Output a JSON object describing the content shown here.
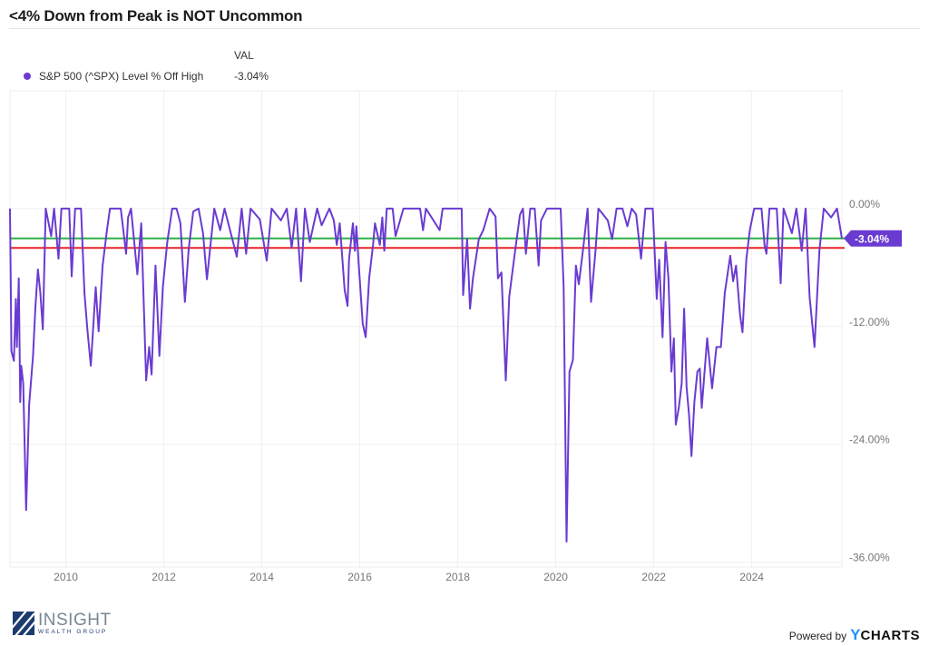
{
  "title": "<4% Down from Peak is NOT Uncommon",
  "legend": {
    "header": "VAL",
    "items": [
      {
        "label": "S&P 500 (^SPX) Level % Off High",
        "value": "-3.04%",
        "color": "#6a3bd1"
      }
    ]
  },
  "footer": {
    "logo_main": "INSIGHT",
    "logo_sub": "WEALTH GROUP",
    "powered_by": "Powered by",
    "brand_y": "Y",
    "brand_rest": "CHARTS"
  },
  "chart_data": {
    "type": "line",
    "title": "<4% Down from Peak is NOT Uncommon",
    "xlabel": "",
    "ylabel": "",
    "xlim": [
      2008.86,
      2025.84
    ],
    "ylim": [
      -36.5,
      12
    ],
    "grid": true,
    "legend_placement": "top-left",
    "x_ticks": [
      2010,
      2012,
      2014,
      2016,
      2018,
      2020,
      2022,
      2024
    ],
    "x_tick_labels": [
      "2010",
      "2012",
      "2014",
      "2016",
      "2018",
      "2020",
      "2022",
      "2024"
    ],
    "y_ticks": [
      0,
      -12,
      -24,
      -36
    ],
    "y_tick_labels": [
      "0.00%",
      "-12.00%",
      "-24.00%",
      "-36.00%"
    ],
    "end_label": "-3.04%",
    "reference_lines": [
      {
        "name": "green-reference",
        "value": -3.04,
        "color": "#2fb045"
      },
      {
        "name": "red-reference",
        "value": -4.0,
        "color": "#ec2227"
      }
    ],
    "series": [
      {
        "name": "S&P 500 (^SPX) Level % Off High",
        "color": "#6a3bd1",
        "points": [
          [
            2008.86,
            0
          ],
          [
            2008.89,
            -14.5
          ],
          [
            2008.94,
            -15.5
          ],
          [
            2008.98,
            -9.2
          ],
          [
            2009.0,
            -14.1
          ],
          [
            2009.04,
            -7.1
          ],
          [
            2009.07,
            -19.7
          ],
          [
            2009.09,
            -16
          ],
          [
            2009.13,
            -17.8
          ],
          [
            2009.19,
            -30.7
          ],
          [
            2009.25,
            -20
          ],
          [
            2009.33,
            -15
          ],
          [
            2009.38,
            -9.9
          ],
          [
            2009.43,
            -6.2
          ],
          [
            2009.48,
            -8.6
          ],
          [
            2009.53,
            -12.3
          ],
          [
            2009.59,
            0
          ],
          [
            2009.7,
            -2.8
          ],
          [
            2009.76,
            0
          ],
          [
            2009.85,
            -5.1
          ],
          [
            2009.91,
            0
          ],
          [
            2010.07,
            0
          ],
          [
            2010.12,
            -6.9
          ],
          [
            2010.19,
            0
          ],
          [
            2010.31,
            0
          ],
          [
            2010.38,
            -8.6
          ],
          [
            2010.44,
            -12.3
          ],
          [
            2010.51,
            -16
          ],
          [
            2010.61,
            -8
          ],
          [
            2010.67,
            -12.5
          ],
          [
            2010.75,
            -5.8
          ],
          [
            2010.84,
            -2.2
          ],
          [
            2010.9,
            0
          ],
          [
            2011.12,
            0
          ],
          [
            2011.23,
            -4.6
          ],
          [
            2011.27,
            -0.9
          ],
          [
            2011.33,
            0
          ],
          [
            2011.46,
            -6.7
          ],
          [
            2011.54,
            -1.5
          ],
          [
            2011.64,
            -17.5
          ],
          [
            2011.7,
            -14.1
          ],
          [
            2011.75,
            -16.9
          ],
          [
            2011.83,
            -5.8
          ],
          [
            2011.91,
            -15
          ],
          [
            2011.98,
            -8
          ],
          [
            2012.07,
            -3.4
          ],
          [
            2012.17,
            0
          ],
          [
            2012.26,
            0
          ],
          [
            2012.34,
            -1.5
          ],
          [
            2012.43,
            -9.5
          ],
          [
            2012.51,
            -4
          ],
          [
            2012.6,
            -0.3
          ],
          [
            2012.71,
            0
          ],
          [
            2012.8,
            -2.5
          ],
          [
            2012.88,
            -7.2
          ],
          [
            2013.03,
            0
          ],
          [
            2013.15,
            -2.2
          ],
          [
            2013.24,
            0
          ],
          [
            2013.49,
            -4.9
          ],
          [
            2013.59,
            0
          ],
          [
            2013.68,
            -4.6
          ],
          [
            2013.77,
            0
          ],
          [
            2013.96,
            -1.1
          ],
          [
            2014.1,
            -5.3
          ],
          [
            2014.2,
            0
          ],
          [
            2014.39,
            -1.2
          ],
          [
            2014.51,
            0
          ],
          [
            2014.61,
            -4
          ],
          [
            2014.7,
            0
          ],
          [
            2014.8,
            -7.4
          ],
          [
            2014.88,
            0
          ],
          [
            2014.98,
            -3.4
          ],
          [
            2015.13,
            0
          ],
          [
            2015.22,
            -1.7
          ],
          [
            2015.38,
            0
          ],
          [
            2015.47,
            -1.2
          ],
          [
            2015.53,
            -3.7
          ],
          [
            2015.59,
            -1.5
          ],
          [
            2015.69,
            -8.3
          ],
          [
            2015.75,
            -9.9
          ],
          [
            2015.78,
            -5.2
          ],
          [
            2015.86,
            -1.5
          ],
          [
            2015.9,
            -4.3
          ],
          [
            2015.93,
            -1.8
          ],
          [
            2015.98,
            -5.8
          ],
          [
            2016.06,
            -11.7
          ],
          [
            2016.12,
            -13.1
          ],
          [
            2016.19,
            -7.1
          ],
          [
            2016.27,
            -3.7
          ],
          [
            2016.31,
            -1.5
          ],
          [
            2016.41,
            -3.7
          ],
          [
            2016.46,
            -0.9
          ],
          [
            2016.5,
            -4.3
          ],
          [
            2016.55,
            0
          ],
          [
            2016.67,
            0
          ],
          [
            2016.73,
            -2.8
          ],
          [
            2016.89,
            0
          ],
          [
            2017.23,
            0
          ],
          [
            2017.29,
            -2.2
          ],
          [
            2017.35,
            0
          ],
          [
            2017.63,
            -2.2
          ],
          [
            2017.69,
            0
          ],
          [
            2018.08,
            0
          ],
          [
            2018.11,
            -8.8
          ],
          [
            2018.19,
            -3.1
          ],
          [
            2018.25,
            -10.2
          ],
          [
            2018.31,
            -7.1
          ],
          [
            2018.43,
            -3.1
          ],
          [
            2018.52,
            -2.2
          ],
          [
            2018.65,
            0
          ],
          [
            2018.77,
            -0.8
          ],
          [
            2018.82,
            -7.1
          ],
          [
            2018.89,
            -6.5
          ],
          [
            2018.98,
            -17.5
          ],
          [
            2019.05,
            -9
          ],
          [
            2019.17,
            -4.3
          ],
          [
            2019.27,
            -0.6
          ],
          [
            2019.33,
            0
          ],
          [
            2019.39,
            -4.6
          ],
          [
            2019.48,
            0
          ],
          [
            2019.57,
            0
          ],
          [
            2019.65,
            -5.8
          ],
          [
            2019.7,
            -1.2
          ],
          [
            2019.82,
            0
          ],
          [
            2020.1,
            0
          ],
          [
            2020.16,
            -8
          ],
          [
            2020.22,
            -33.9
          ],
          [
            2020.28,
            -16.6
          ],
          [
            2020.35,
            -15.4
          ],
          [
            2020.41,
            -5.8
          ],
          [
            2020.47,
            -7.7
          ],
          [
            2020.56,
            -4
          ],
          [
            2020.65,
            0
          ],
          [
            2020.72,
            -9.5
          ],
          [
            2020.81,
            -4.3
          ],
          [
            2020.87,
            0
          ],
          [
            2021.06,
            -1.2
          ],
          [
            2021.15,
            -3.1
          ],
          [
            2021.24,
            0
          ],
          [
            2021.36,
            0
          ],
          [
            2021.46,
            -1.8
          ],
          [
            2021.55,
            0
          ],
          [
            2021.64,
            -0.6
          ],
          [
            2021.74,
            -5.1
          ],
          [
            2021.83,
            0
          ],
          [
            2021.98,
            0
          ],
          [
            2022.06,
            -9.2
          ],
          [
            2022.11,
            -5.2
          ],
          [
            2022.18,
            -13.1
          ],
          [
            2022.24,
            -3.4
          ],
          [
            2022.3,
            -7.1
          ],
          [
            2022.36,
            -16.6
          ],
          [
            2022.41,
            -13.2
          ],
          [
            2022.45,
            -22
          ],
          [
            2022.51,
            -20.3
          ],
          [
            2022.57,
            -17.8
          ],
          [
            2022.62,
            -10.2
          ],
          [
            2022.67,
            -18.2
          ],
          [
            2022.72,
            -21
          ],
          [
            2022.77,
            -25.2
          ],
          [
            2022.83,
            -19.7
          ],
          [
            2022.89,
            -16.6
          ],
          [
            2022.94,
            -16.3
          ],
          [
            2022.98,
            -20.3
          ],
          [
            2023.09,
            -13.2
          ],
          [
            2023.19,
            -18.3
          ],
          [
            2023.28,
            -14.1
          ],
          [
            2023.37,
            -14.1
          ],
          [
            2023.45,
            -8.6
          ],
          [
            2023.56,
            -4.8
          ],
          [
            2023.62,
            -7.4
          ],
          [
            2023.68,
            -5.8
          ],
          [
            2023.76,
            -10.8
          ],
          [
            2023.81,
            -12.6
          ],
          [
            2023.89,
            -5.1
          ],
          [
            2023.96,
            -2.2
          ],
          [
            2024.05,
            0
          ],
          [
            2024.2,
            0
          ],
          [
            2024.26,
            -3.7
          ],
          [
            2024.3,
            -4.6
          ],
          [
            2024.36,
            0
          ],
          [
            2024.51,
            0
          ],
          [
            2024.59,
            -7.6
          ],
          [
            2024.65,
            0
          ],
          [
            2024.82,
            -2.5
          ],
          [
            2024.91,
            0
          ],
          [
            2025.02,
            -4.3
          ],
          [
            2025.1,
            0
          ],
          [
            2025.18,
            -9
          ],
          [
            2025.28,
            -14.1
          ],
          [
            2025.38,
            -4.3
          ],
          [
            2025.47,
            0
          ],
          [
            2025.62,
            -0.9
          ],
          [
            2025.74,
            0
          ],
          [
            2025.84,
            -3.04
          ]
        ]
      }
    ]
  }
}
